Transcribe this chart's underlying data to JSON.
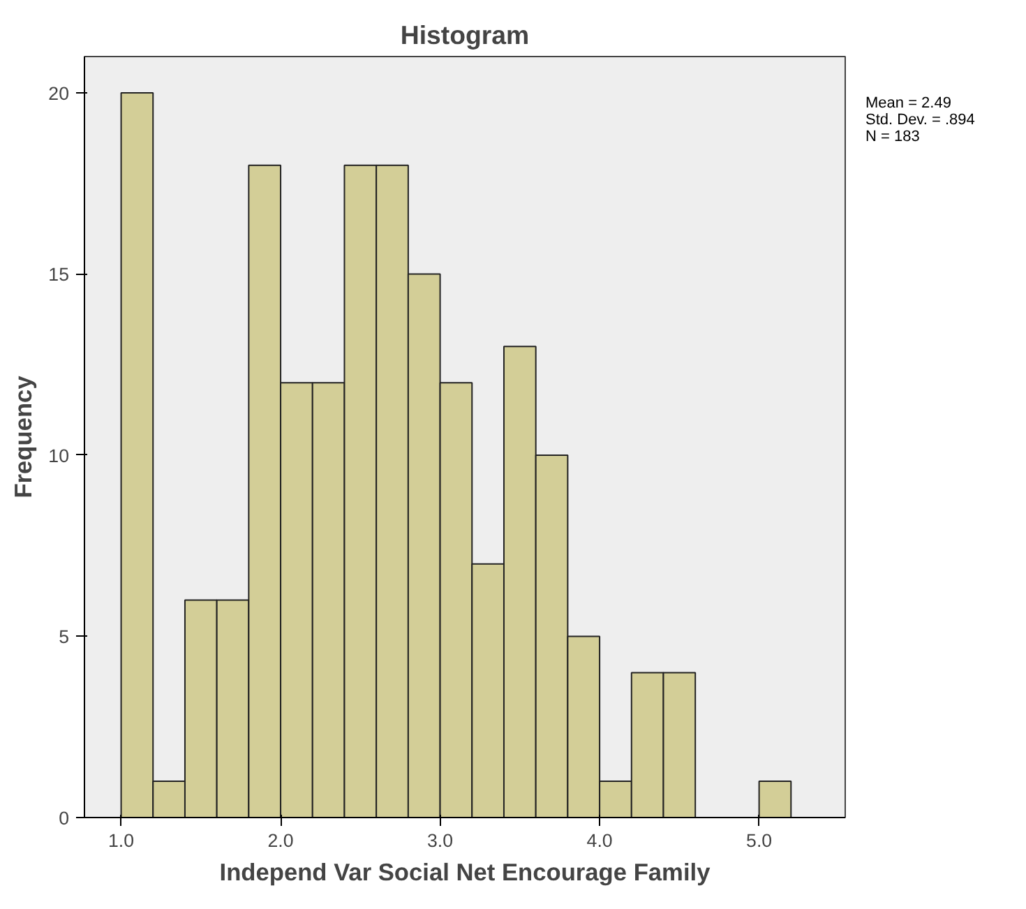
{
  "chart_data": {
    "type": "histogram",
    "title": "Histogram",
    "xlabel": "Independ Var Social Net Encourage Family",
    "ylabel": "Frequency",
    "bins": [
      1.0,
      1.2,
      1.4,
      1.6,
      1.8,
      2.0,
      2.2,
      2.4,
      2.6,
      2.8,
      3.0,
      3.2,
      3.4,
      3.6,
      3.8,
      4.0,
      4.2,
      4.4,
      4.6,
      4.8,
      5.0,
      5.2
    ],
    "values": [
      20,
      1,
      6,
      6,
      18,
      12,
      12,
      18,
      18,
      15,
      12,
      7,
      13,
      10,
      5,
      1,
      4,
      4,
      0,
      0,
      1
    ],
    "color": "#d3ce97",
    "xlim": [
      0.77,
      5.54
    ],
    "ylim": [
      0,
      21
    ],
    "xticks": [
      {
        "value": 1,
        "label": "1.0"
      },
      {
        "value": 2,
        "label": "2.0"
      },
      {
        "value": 3,
        "label": "3.0"
      },
      {
        "value": 4,
        "label": "4.0"
      },
      {
        "value": 5,
        "label": "5.0"
      }
    ],
    "yticks": [
      0,
      5,
      10,
      15,
      20
    ],
    "annotations": [
      "Mean = 2.49",
      "Std. Dev. = .894",
      "N = 183"
    ],
    "grid": false
  }
}
